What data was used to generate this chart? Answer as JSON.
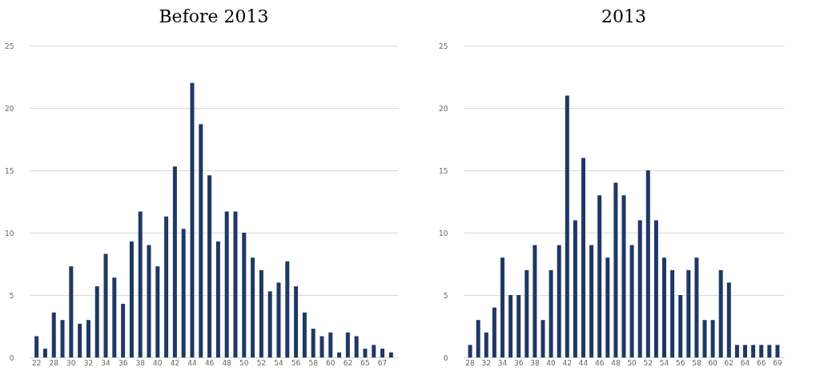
{
  "chart_data": [
    {
      "type": "bar",
      "title": "Before 2013",
      "color": "#1f3864",
      "ylim": [
        0,
        25
      ],
      "yticks": [
        0,
        5,
        10,
        15,
        20,
        25
      ],
      "grid": "y",
      "categories": [
        "22",
        null,
        "28",
        null,
        "30",
        null,
        "32",
        null,
        "34",
        null,
        "36",
        null,
        "38",
        null,
        "40",
        null,
        "42",
        null,
        "44",
        null,
        "46",
        null,
        "48",
        null,
        "50",
        null,
        "52",
        null,
        "54",
        null,
        "56",
        null,
        "58",
        null,
        "60",
        null,
        "62",
        null,
        "65",
        null,
        "67",
        null
      ],
      "values": [
        1.7,
        0.7,
        3.6,
        3.0,
        7.3,
        2.7,
        3.0,
        5.7,
        8.3,
        6.4,
        4.3,
        9.3,
        11.7,
        9.0,
        7.3,
        11.3,
        15.3,
        10.3,
        22,
        18.7,
        14.6,
        9.3,
        11.7,
        11.7,
        10,
        8,
        7,
        5.3,
        6,
        7.7,
        5.7,
        3.6,
        2.3,
        1.7,
        2.0,
        0.4,
        2.0,
        1.7,
        0.7,
        1.0,
        0.7,
        0.4
      ]
    },
    {
      "type": "bar",
      "title": "2013",
      "color": "#1f3864",
      "ylim": [
        0,
        25
      ],
      "yticks": [
        0,
        5,
        10,
        15,
        20,
        25
      ],
      "grid": "y",
      "categories": [
        "28",
        null,
        "32",
        null,
        "34",
        null,
        "36",
        null,
        "38",
        null,
        "40",
        null,
        "42",
        null,
        "44",
        null,
        "46",
        null,
        "48",
        null,
        "50",
        null,
        "52",
        null,
        "54",
        null,
        "56",
        null,
        "58",
        null,
        "60",
        null,
        "62",
        null,
        "64",
        null,
        "66",
        null,
        "69"
      ],
      "values": [
        1,
        3,
        2,
        4,
        8,
        5,
        5,
        7,
        9,
        3,
        7,
        9,
        21,
        11,
        16,
        9,
        13,
        8,
        14,
        13,
        9,
        11,
        15,
        11,
        8,
        7,
        5,
        7,
        8,
        3,
        3,
        7,
        6,
        1,
        1,
        1,
        1,
        1,
        1
      ]
    }
  ]
}
